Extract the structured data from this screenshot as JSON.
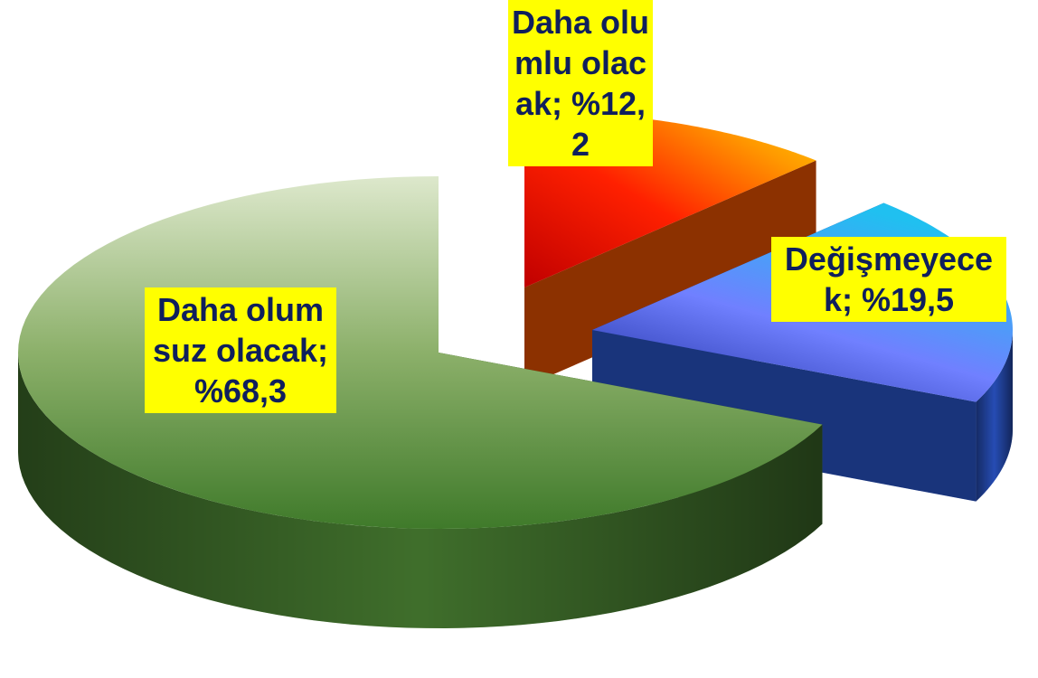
{
  "chart_data": {
    "type": "pie",
    "categories": [
      "Daha olumlu olacak;",
      "Değişmeyecek;",
      "Daha olumsuz olacak;"
    ],
    "values": [
      12.2,
      19.5,
      68.3
    ],
    "value_labels": [
      "%12,2",
      "%19,5",
      "%68,3"
    ],
    "colors": [
      "#ff5a00",
      "#2f5fe0",
      "#4f8a36"
    ],
    "exploded": true,
    "three_d": true
  }
}
